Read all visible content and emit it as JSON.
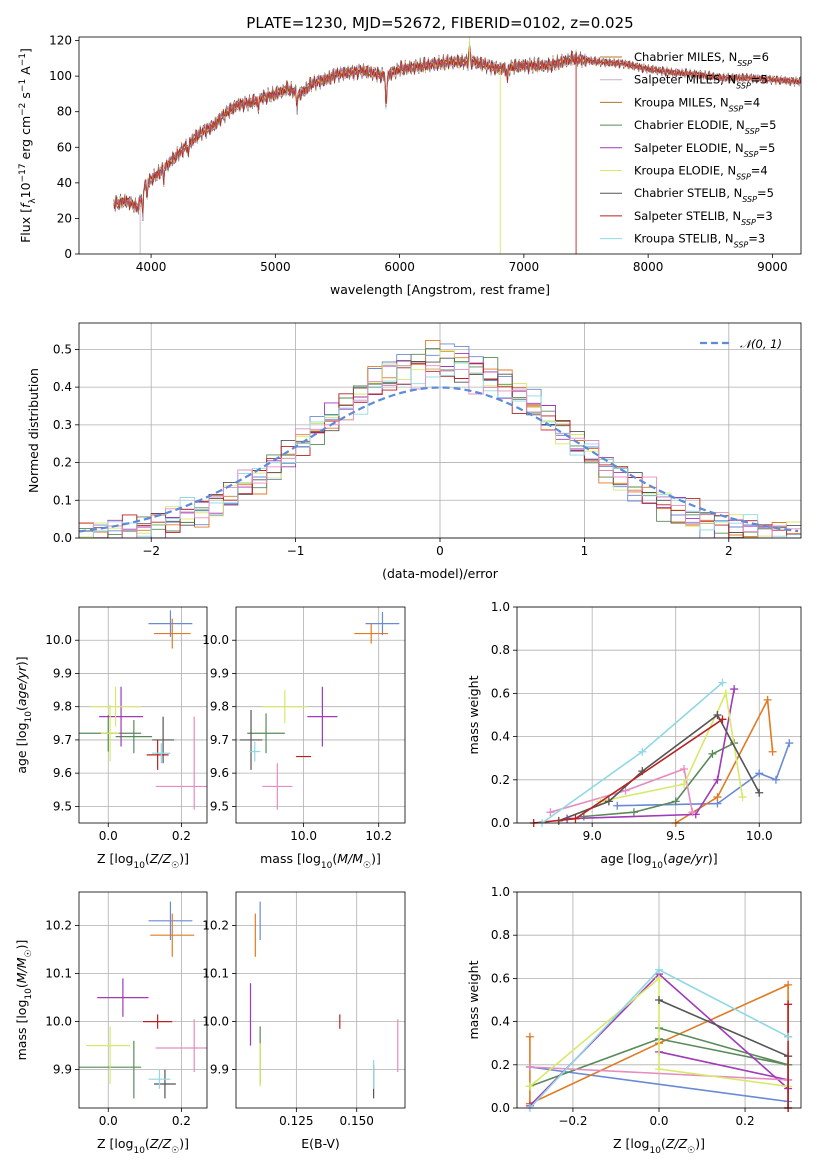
{
  "title": "PLATE=1230, MJD=52672, FIBERID=0102, z=0.025",
  "colors": [
    "#6a8ad6",
    "#e07b24",
    "#5a8a5a",
    "#a03ab8",
    "#c9b4c5",
    "#d8e86b",
    "#555555",
    "#b82222",
    "#8fd8e4",
    "#e58cc1",
    "#b07a2a"
  ],
  "legend_labels": [
    "Chabrier MILES, N$_{SSP}$=6",
    "Salpeter MILES, N$_{SSP}$=5",
    "Kroupa MILES, N$_{SSP}$=4",
    "Chabrier ELODIE, N$_{SSP}$=5",
    "Salpeter ELODIE, N$_{SSP}$=5",
    "Kroupa ELODIE, N$_{SSP}$=4",
    "Chabrier STELIB, N$_{SSP}$=5",
    "Salpeter STELIB, N$_{SSP}$=3",
    "Kroupa STELIB, N$_{SSP}$=3"
  ],
  "chart_data": [
    {
      "id": "spectrum",
      "type": "line",
      "title": "PLATE=1230, MJD=52672, FIBERID=0102, z=0.025",
      "xlabel": "wavelength [Angstrom, rest frame]",
      "ylabel": "Flux [f_λ 10^-17 erg cm^-2 s^-1 A^-1]",
      "xlim": [
        3420,
        9230
      ],
      "ylim": [
        0,
        122
      ],
      "xticks": [
        4000,
        5000,
        6000,
        7000,
        8000,
        9000
      ],
      "yticks": [
        0,
        20,
        40,
        60,
        80,
        100,
        120
      ],
      "legend": "right",
      "continuum_knots": [
        [
          3700,
          28
        ],
        [
          3800,
          30
        ],
        [
          3900,
          26
        ],
        [
          3950,
          40
        ],
        [
          4000,
          42
        ],
        [
          4100,
          48
        ],
        [
          4200,
          55
        ],
        [
          4300,
          62
        ],
        [
          4400,
          68
        ],
        [
          4500,
          72
        ],
        [
          4600,
          79
        ],
        [
          4700,
          84
        ],
        [
          4800,
          85
        ],
        [
          4900,
          88
        ],
        [
          5000,
          90
        ],
        [
          5100,
          93
        ],
        [
          5200,
          90
        ],
        [
          5300,
          96
        ],
        [
          5400,
          98
        ],
        [
          5500,
          101
        ],
        [
          5700,
          103
        ],
        [
          5890,
          100
        ],
        [
          6000,
          104
        ],
        [
          6200,
          106
        ],
        [
          6400,
          108
        ],
        [
          6600,
          108
        ],
        [
          6800,
          104
        ],
        [
          7000,
          106
        ],
        [
          7200,
          106
        ],
        [
          7400,
          110
        ],
        [
          7600,
          108
        ],
        [
          7800,
          107
        ],
        [
          8000,
          104
        ],
        [
          8200,
          102
        ],
        [
          8400,
          101
        ],
        [
          8600,
          99
        ],
        [
          8800,
          99
        ],
        [
          9000,
          98
        ],
        [
          9200,
          97
        ]
      ]
    },
    {
      "id": "residuals",
      "type": "line",
      "xlabel": "(data-model)/error",
      "ylabel": "Normed distribution",
      "xlim": [
        -2.5,
        2.5
      ],
      "ylim": [
        0,
        0.57
      ],
      "xticks": [
        -2,
        -1,
        0,
        1,
        2
      ],
      "xtick_labels": [
        "−2",
        "−1",
        "0",
        "1",
        "2"
      ],
      "yticks": [
        0.0,
        0.1,
        0.2,
        0.3,
        0.4,
        0.5
      ],
      "bin_width": 0.1,
      "gaussian_label": "𝒩(0, 1)",
      "legend": "top-right"
    },
    {
      "id": "age_vs_Z",
      "type": "scatter",
      "xlabel": "Z [log10(Z/Z☉)]",
      "ylabel": "age  [log10(age/yr)]",
      "xlim": [
        -0.08,
        0.27
      ],
      "ylim": [
        9.45,
        10.1
      ],
      "xticks": [
        0.0,
        0.2
      ],
      "yticks": [
        9.5,
        9.6,
        9.7,
        9.8,
        9.9,
        10.0
      ],
      "points": [
        {
          "x": 0.17,
          "y": 10.05,
          "xe": 0.06,
          "ye": 0.04,
          "c": 0
        },
        {
          "x": 0.175,
          "y": 10.02,
          "xe": 0.05,
          "ye": 0.045,
          "c": 1
        },
        {
          "x": 0.0,
          "y": 9.72,
          "xe": 0.09,
          "ye": 0.055,
          "c": 2
        },
        {
          "x": 0.07,
          "y": 9.71,
          "xe": 0.05,
          "ye": 0.05,
          "c": 2
        },
        {
          "x": 0.035,
          "y": 9.77,
          "xe": 0.06,
          "ye": 0.09,
          "c": 3
        },
        {
          "x": 0.02,
          "y": 9.8,
          "xe": 0.07,
          "ye": 0.06,
          "c": 5
        },
        {
          "x": 0.005,
          "y": 9.72,
          "xe": 0.025,
          "ye": 0.085,
          "c": 5
        },
        {
          "x": 0.15,
          "y": 9.7,
          "xe": 0.03,
          "ye": 0.07,
          "c": 6
        },
        {
          "x": 0.135,
          "y": 9.655,
          "xe": 0.03,
          "ye": 0.045,
          "c": 7
        },
        {
          "x": 0.145,
          "y": 9.66,
          "xe": 0.025,
          "ye": 0.03,
          "c": 8
        },
        {
          "x": 0.2,
          "y": 9.56,
          "xe": 0.07,
          "ye": 0.0,
          "c": 9
        },
        {
          "x": 0.235,
          "y": 9.63,
          "xe": 0.0,
          "ye": 0.14,
          "c": 9
        }
      ]
    },
    {
      "id": "age_vs_mass",
      "type": "scatter",
      "xlabel": "mass [log10(M/M☉)]",
      "ylabel": "",
      "xlim": [
        9.82,
        10.27
      ],
      "ylim": [
        9.45,
        10.1
      ],
      "xticks": [
        10.0,
        10.2
      ],
      "yticks": [
        9.5,
        9.6,
        9.7,
        9.8,
        9.9,
        10.0
      ],
      "points": [
        {
          "x": 10.21,
          "y": 10.05,
          "xe": 0.045,
          "ye": 0.035,
          "c": 0
        },
        {
          "x": 10.18,
          "y": 10.02,
          "xe": 0.045,
          "ye": 0.03,
          "c": 1
        },
        {
          "x": 9.9,
          "y": 9.72,
          "xe": 0.05,
          "ye": 0.06,
          "c": 2
        },
        {
          "x": 10.05,
          "y": 9.77,
          "xe": 0.04,
          "ye": 0.09,
          "c": 3
        },
        {
          "x": 9.95,
          "y": 9.8,
          "xe": 0.06,
          "ye": 0.05,
          "c": 5
        },
        {
          "x": 9.86,
          "y": 9.7,
          "xe": 0.03,
          "ye": 0.09,
          "c": 6
        },
        {
          "x": 10.0,
          "y": 9.65,
          "xe": 0.02,
          "ye": 0.0,
          "c": 7
        },
        {
          "x": 9.87,
          "y": 9.665,
          "xe": 0.015,
          "ye": 0.03,
          "c": 8
        },
        {
          "x": 9.93,
          "y": 9.56,
          "xe": 0.04,
          "ye": 0.07,
          "c": 9
        }
      ]
    },
    {
      "id": "weight_vs_age",
      "type": "line",
      "xlabel": "age  [log10(age/yr)]",
      "ylabel": "mass weight",
      "xlim": [
        8.55,
        10.25
      ],
      "ylim": [
        0,
        1.0
      ],
      "xticks": [
        9.0,
        9.5,
        10.0
      ],
      "yticks": [
        0.0,
        0.2,
        0.4,
        0.6,
        0.8,
        1.0
      ],
      "series": [
        {
          "c": 0,
          "pts": [
            [
              9.15,
              0.08
            ],
            [
              9.75,
              0.09
            ],
            [
              10.0,
              0.23
            ],
            [
              10.1,
              0.2
            ],
            [
              10.18,
              0.37
            ]
          ]
        },
        {
          "c": 1,
          "pts": [
            [
              9.5,
              0.0
            ],
            [
              9.75,
              0.12
            ],
            [
              10.05,
              0.57
            ],
            [
              10.08,
              0.33
            ]
          ]
        },
        {
          "c": 2,
          "pts": [
            [
              8.95,
              0.03
            ],
            [
              9.25,
              0.05
            ],
            [
              9.5,
              0.1
            ],
            [
              9.72,
              0.32
            ],
            [
              9.85,
              0.37
            ]
          ]
        },
        {
          "c": 3,
          "pts": [
            [
              8.85,
              0.02
            ],
            [
              9.62,
              0.04
            ],
            [
              9.75,
              0.2
            ],
            [
              9.85,
              0.62
            ]
          ]
        },
        {
          "c": 9,
          "pts": [
            [
              8.75,
              0.05
            ],
            [
              9.2,
              0.15
            ],
            [
              9.55,
              0.25
            ],
            [
              9.6,
              0.05
            ]
          ]
        },
        {
          "c": 5,
          "pts": [
            [
              9.05,
              0.1
            ],
            [
              9.55,
              0.18
            ],
            [
              9.8,
              0.6
            ],
            [
              9.9,
              0.12
            ]
          ]
        },
        {
          "c": 6,
          "pts": [
            [
              8.8,
              0.01
            ],
            [
              9.1,
              0.1
            ],
            [
              9.3,
              0.24
            ],
            [
              9.75,
              0.5
            ],
            [
              10.0,
              0.14
            ]
          ]
        },
        {
          "c": 7,
          "pts": [
            [
              8.65,
              0.0
            ],
            [
              8.9,
              0.02
            ],
            [
              9.78,
              0.48
            ]
          ]
        },
        {
          "c": 8,
          "pts": [
            [
              8.7,
              0.0
            ],
            [
              9.3,
              0.33
            ],
            [
              9.78,
              0.65
            ]
          ]
        }
      ]
    },
    {
      "id": "mass_vs_Z",
      "type": "scatter",
      "xlabel": "Z [log10(Z/Z☉)]",
      "ylabel": "mass [log10(M/M☉)]",
      "xlim": [
        -0.08,
        0.27
      ],
      "ylim": [
        9.82,
        10.27
      ],
      "xticks": [
        0.0,
        0.2
      ],
      "yticks": [
        9.9,
        10.0,
        10.1,
        10.2
      ],
      "points": [
        {
          "x": 0.17,
          "y": 10.21,
          "xe": 0.06,
          "ye": 0.04,
          "c": 0
        },
        {
          "x": 0.175,
          "y": 10.18,
          "xe": 0.06,
          "ye": 0.045,
          "c": 1
        },
        {
          "x": 0.0,
          "y": 9.905,
          "xe": 0.09,
          "ye": 0.0,
          "c": 2
        },
        {
          "x": 0.07,
          "y": 9.9,
          "xe": 0.0,
          "ye": 0.06,
          "c": 2
        },
        {
          "x": 0.04,
          "y": 10.05,
          "xe": 0.07,
          "ye": 0.04,
          "c": 3
        },
        {
          "x": 0.0,
          "y": 9.95,
          "xe": 0.06,
          "ye": 0.0,
          "c": 5
        },
        {
          "x": 0.005,
          "y": 9.93,
          "xe": 0.0,
          "ye": 0.06,
          "c": 5
        },
        {
          "x": 0.155,
          "y": 9.87,
          "xe": 0.03,
          "ye": 0.03,
          "c": 6
        },
        {
          "x": 0.135,
          "y": 10.0,
          "xe": 0.04,
          "ye": 0.015,
          "c": 7
        },
        {
          "x": 0.14,
          "y": 9.88,
          "xe": 0.03,
          "ye": 0.02,
          "c": 8
        },
        {
          "x": 0.2,
          "y": 9.945,
          "xe": 0.07,
          "ye": 0.0,
          "c": 9
        },
        {
          "x": 0.235,
          "y": 9.95,
          "xe": 0.0,
          "ye": 0.055,
          "c": 9
        }
      ]
    },
    {
      "id": "mass_vs_EBV",
      "type": "scatter",
      "xlabel": "E(B-V)",
      "ylabel": "",
      "xlim": [
        0.1,
        0.17
      ],
      "ylim": [
        9.82,
        10.27
      ],
      "xticks": [
        0.125,
        0.15
      ],
      "yticks": [
        9.9,
        10.0,
        10.1,
        10.2
      ],
      "points": [
        {
          "x": 0.11,
          "y": 10.21,
          "xe": 0.0,
          "ye": 0.04,
          "c": 0
        },
        {
          "x": 0.108,
          "y": 10.18,
          "xe": 0.0,
          "ye": 0.045,
          "c": 1
        },
        {
          "x": 0.11,
          "y": 9.93,
          "xe": 0.0,
          "ye": 0.06,
          "c": 2
        },
        {
          "x": 0.106,
          "y": 10.015,
          "xe": 0.0,
          "ye": 0.065,
          "c": 3
        },
        {
          "x": 0.11,
          "y": 9.91,
          "xe": 0.0,
          "ye": 0.045,
          "c": 5
        },
        {
          "x": 0.157,
          "y": 9.875,
          "xe": 0.0,
          "ye": 0.035,
          "c": 6
        },
        {
          "x": 0.143,
          "y": 10.0,
          "xe": 0.0,
          "ye": 0.015,
          "c": 7
        },
        {
          "x": 0.157,
          "y": 9.89,
          "xe": 0.0,
          "ye": 0.03,
          "c": 8
        },
        {
          "x": 0.167,
          "y": 9.95,
          "xe": 0.0,
          "ye": 0.055,
          "c": 9
        }
      ]
    },
    {
      "id": "weight_vs_Z",
      "type": "line",
      "xlabel": "Z [log10(Z/Z☉)]",
      "ylabel": "mass weight",
      "xlim": [
        -0.33,
        0.33
      ],
      "ylim": [
        0,
        1.0
      ],
      "xticks": [
        -0.2,
        0.0,
        0.2
      ],
      "xtick_labels": [
        "−0.2",
        "0.0",
        "0.2"
      ],
      "yticks": [
        0.0,
        0.2,
        0.4,
        0.6,
        0.8,
        1.0
      ],
      "series": [
        {
          "c": 0,
          "pts": [
            [
              -0.3,
              0.19
            ],
            [
              0.3,
              0.03
            ]
          ]
        },
        {
          "c": 1,
          "pts": [
            [
              -0.3,
              0.33
            ],
            [
              -0.3,
              0.02
            ],
            [
              0.0,
              0.3
            ],
            [
              0.3,
              0.57
            ],
            [
              0.3,
              0.33
            ]
          ]
        },
        {
          "c": 2,
          "pts": [
            [
              -0.3,
              0.1
            ],
            [
              0.0,
              0.32
            ],
            [
              0.3,
              0.2
            ]
          ]
        },
        {
          "c": 2,
          "pts": [
            [
              0.0,
              0.37
            ],
            [
              0.3,
              0.2
            ]
          ]
        },
        {
          "c": 3,
          "pts": [
            [
              -0.3,
              0.01
            ],
            [
              0.0,
              0.62
            ],
            [
              0.3,
              0.09
            ]
          ]
        },
        {
          "c": 3,
          "pts": [
            [
              0.0,
              0.26
            ],
            [
              0.3,
              0.13
            ]
          ]
        },
        {
          "c": 9,
          "pts": [
            [
              -0.3,
              0.19
            ],
            [
              0.3,
              0.13
            ]
          ]
        },
        {
          "c": 5,
          "pts": [
            [
              -0.3,
              0.1
            ],
            [
              0.0,
              0.6
            ],
            [
              0.0,
              0.18
            ],
            [
              0.3,
              0.1
            ]
          ]
        },
        {
          "c": 6,
          "pts": [
            [
              0.0,
              0.5
            ],
            [
              0.3,
              0.24
            ]
          ]
        },
        {
          "c": 6,
          "pts": [
            [
              0.3,
              0.0
            ],
            [
              0.3,
              0.24
            ]
          ]
        },
        {
          "c": 7,
          "pts": [
            [
              0.3,
              0.48
            ],
            [
              0.3,
              0.0
            ]
          ]
        },
        {
          "c": 8,
          "pts": [
            [
              -0.3,
              0.0
            ],
            [
              0.0,
              0.64
            ],
            [
              0.3,
              0.33
            ]
          ]
        }
      ]
    }
  ]
}
